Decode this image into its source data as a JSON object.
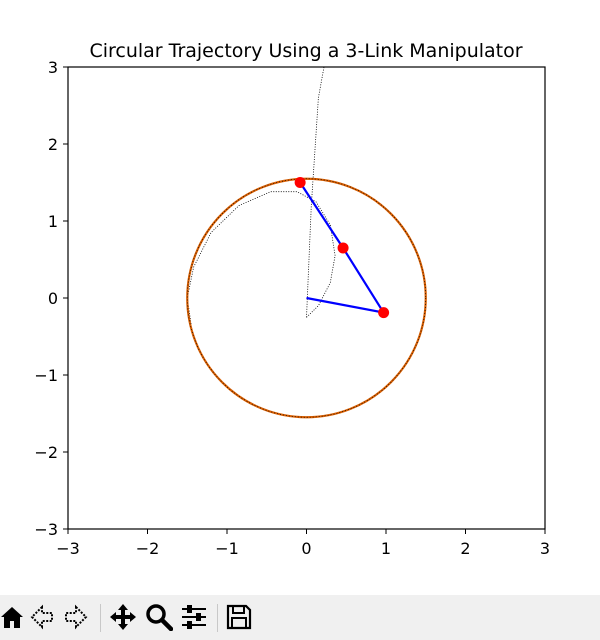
{
  "chart_data": {
    "type": "line",
    "title": "Circular Trajectory Using a 3-Link Manipulator",
    "xlim": [
      -3,
      3
    ],
    "ylim": [
      -3,
      3
    ],
    "xticks": [
      -3,
      -2,
      -1,
      0,
      1,
      2,
      3
    ],
    "yticks": [
      -3,
      -2,
      -1,
      0,
      1,
      2,
      3
    ],
    "tick_labels_x": [
      "−3",
      "−2",
      "−1",
      "0",
      "1",
      "2",
      "3"
    ],
    "tick_labels_y": [
      "−3",
      "−2",
      "−1",
      "0",
      "1",
      "2",
      "3"
    ],
    "grid": false,
    "trajectory_circle": {
      "center": [
        0,
        0
      ],
      "radius": 1.5,
      "color": "#d95f02"
    },
    "manipulator": {
      "joints": [
        [
          0,
          0
        ],
        [
          0.97,
          -0.19
        ],
        [
          0.46,
          0.65
        ],
        [
          -0.08,
          1.5
        ]
      ],
      "link_color": "#0000ff",
      "joint_marker_color": "#ff0000"
    },
    "dotted_traces": [
      {
        "points": [
          [
            0.0,
            -0.25
          ],
          [
            0.06,
            1.2
          ],
          [
            0.15,
            2.6
          ],
          [
            0.22,
            3.0
          ]
        ]
      },
      {
        "points": [
          [
            0.0,
            -0.25
          ],
          [
            0.15,
            -0.1
          ],
          [
            0.3,
            0.2
          ],
          [
            0.36,
            0.55
          ],
          [
            0.3,
            0.95
          ],
          [
            0.12,
            1.25
          ],
          [
            -0.12,
            1.38
          ],
          [
            -0.45,
            1.38
          ],
          [
            -0.85,
            1.2
          ],
          [
            -1.2,
            0.85
          ],
          [
            -1.42,
            0.4
          ],
          [
            -1.5,
            0.0
          ],
          [
            -1.45,
            -0.35
          ]
        ]
      }
    ]
  },
  "toolbar": {
    "buttons": [
      {
        "name": "home",
        "icon": "home-icon"
      },
      {
        "name": "back",
        "icon": "back-arrow-icon"
      },
      {
        "name": "forward",
        "icon": "forward-arrow-icon"
      },
      {
        "name": "pan",
        "icon": "move-icon"
      },
      {
        "name": "zoom",
        "icon": "zoom-icon"
      },
      {
        "name": "configure",
        "icon": "sliders-icon"
      },
      {
        "name": "save",
        "icon": "save-icon"
      }
    ]
  }
}
